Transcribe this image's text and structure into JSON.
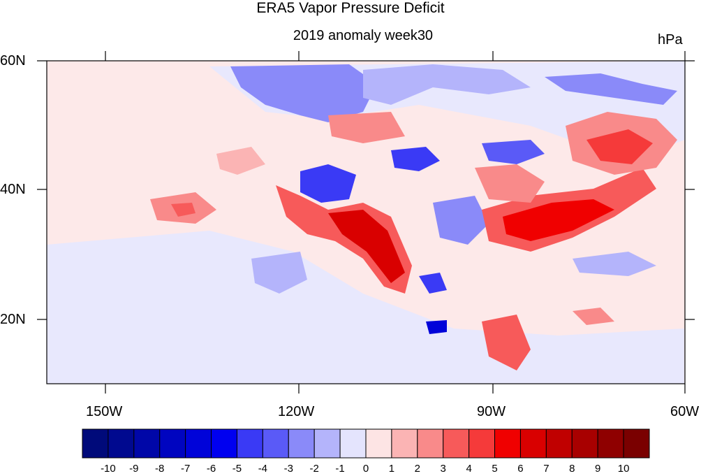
{
  "header": {
    "title": "ERA5 Vapor Pressure Deficit",
    "subtitle": "2019 anomaly week30",
    "units": "hPa"
  },
  "axes": {
    "lat_labels": [
      "60N",
      "40N",
      "20N"
    ],
    "lon_labels": [
      "150W",
      "120W",
      "90W",
      "60W"
    ]
  },
  "colorbar": {
    "labels": [
      "-10",
      "-9",
      "-8",
      "-7",
      "-6",
      "-5",
      "-4",
      "-3",
      "-2",
      "-1",
      "0",
      "1",
      "2",
      "3",
      "4",
      "5",
      "6",
      "7",
      "8",
      "9",
      "10"
    ],
    "colors": [
      "#000a7a",
      "#00098f",
      "#0007a8",
      "#0005c0",
      "#0003d9",
      "#0000f0",
      "#3a3af5",
      "#5a5af7",
      "#8a8af9",
      "#b4b4fb",
      "#e4e4fd",
      "#fde4e4",
      "#fbb4b4",
      "#f98a8a",
      "#f75a5a",
      "#f53a3a",
      "#f00000",
      "#d90000",
      "#c00000",
      "#a80000",
      "#8f0000",
      "#7a0000"
    ]
  }
}
